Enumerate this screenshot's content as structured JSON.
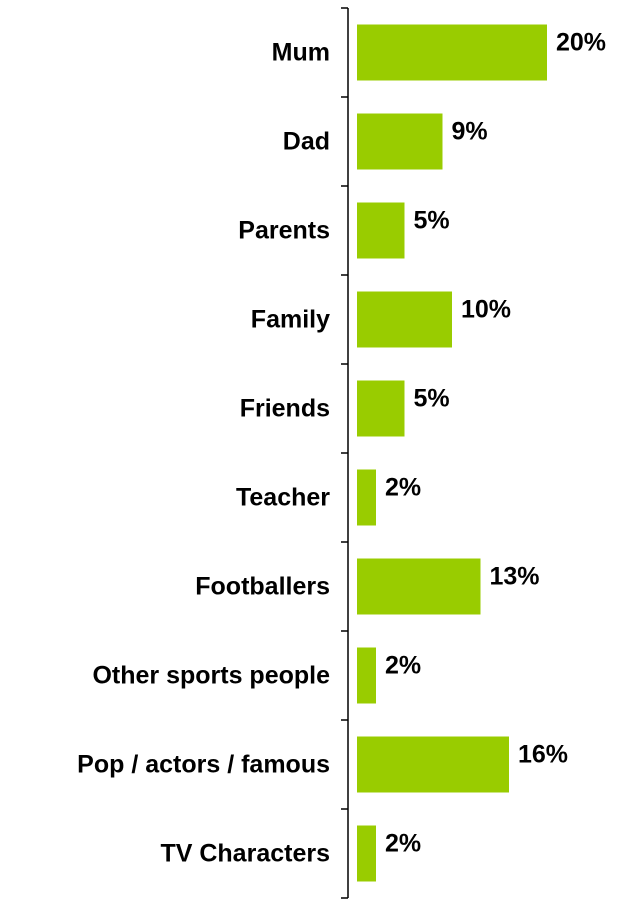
{
  "chart_data": {
    "type": "bar",
    "orientation": "horizontal",
    "categories": [
      "Mum",
      "Dad",
      "Parents",
      "Family",
      "Friends",
      "Teacher",
      "Footballers",
      "Other sports people",
      "Pop / actors / famous",
      "TV Characters"
    ],
    "values": [
      20,
      9,
      5,
      10,
      5,
      2,
      13,
      2,
      16,
      2
    ],
    "value_labels": [
      "20%",
      "9%",
      "5%",
      "10%",
      "5%",
      "2%",
      "13%",
      "2%",
      "16%",
      "2%"
    ],
    "unit": "%",
    "title": "",
    "xlabel": "",
    "ylabel": "",
    "xlim": [
      0,
      20
    ],
    "grid": false,
    "legend": "none",
    "bar_color": "#99cc00",
    "axis_color": "#000000"
  }
}
